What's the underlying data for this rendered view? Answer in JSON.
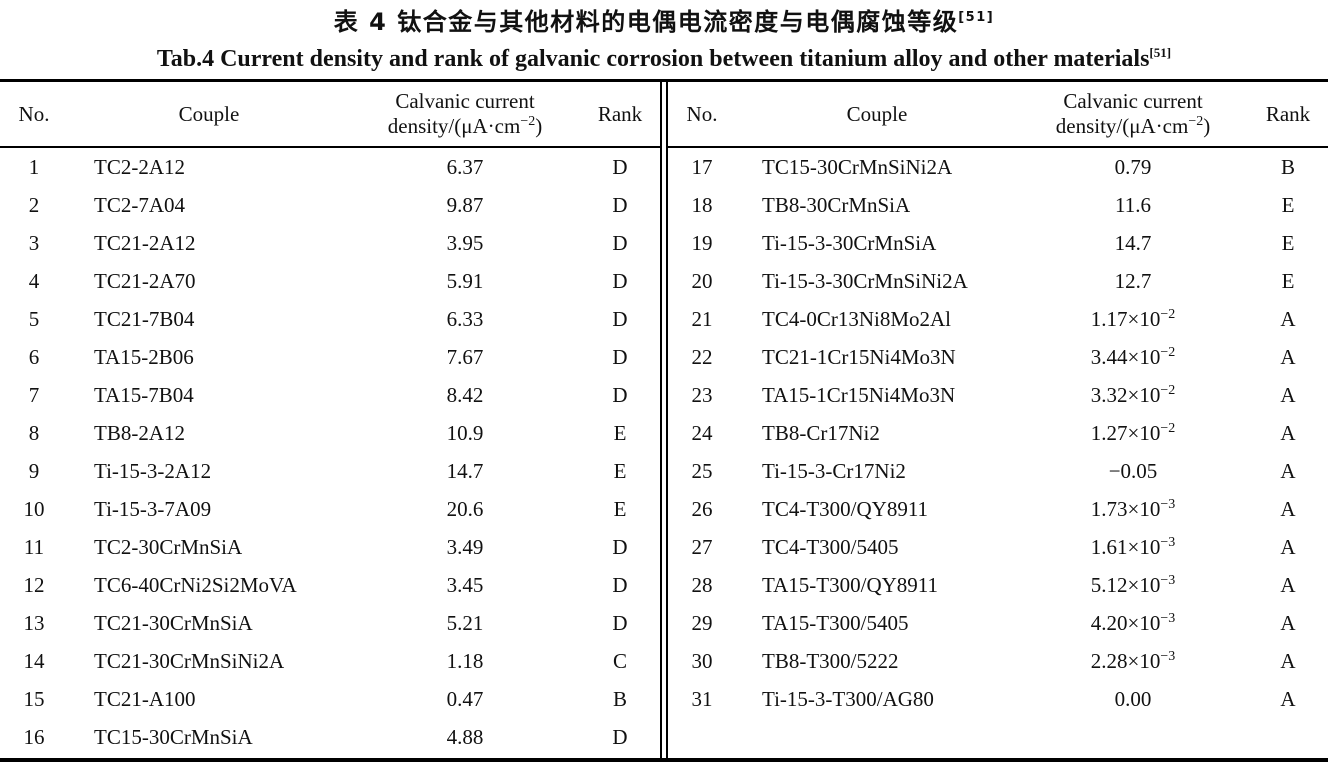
{
  "titles": {
    "zh": "表 4  钛合金与其他材料的电偶电流密度与电偶腐蚀等级",
    "zh_ref": "[51]",
    "en": "Tab.4 Current density and rank of galvanic corrosion between titanium alloy and other materials",
    "en_ref": "[51]"
  },
  "table": {
    "headers": {
      "no": "No.",
      "couple": "Couple",
      "density_line1": "Calvanic current",
      "density_unit_pre": "density/(μA·cm",
      "density_unit_sup": "−2",
      "density_unit_post": ")",
      "rank": "Rank"
    },
    "left_rows": [
      {
        "no": "1",
        "couple": "TC2-2A12",
        "density": "6.37",
        "density_exp": "",
        "rank": "D"
      },
      {
        "no": "2",
        "couple": "TC2-7A04",
        "density": "9.87",
        "density_exp": "",
        "rank": "D"
      },
      {
        "no": "3",
        "couple": "TC21-2A12",
        "density": "3.95",
        "density_exp": "",
        "rank": "D"
      },
      {
        "no": "4",
        "couple": "TC21-2A70",
        "density": "5.91",
        "density_exp": "",
        "rank": "D"
      },
      {
        "no": "5",
        "couple": "TC21-7B04",
        "density": "6.33",
        "density_exp": "",
        "rank": "D"
      },
      {
        "no": "6",
        "couple": "TA15-2B06",
        "density": "7.67",
        "density_exp": "",
        "rank": "D"
      },
      {
        "no": "7",
        "couple": "TA15-7B04",
        "density": "8.42",
        "density_exp": "",
        "rank": "D"
      },
      {
        "no": "8",
        "couple": "TB8-2A12",
        "density": "10.9",
        "density_exp": "",
        "rank": "E"
      },
      {
        "no": "9",
        "couple": "Ti-15-3-2A12",
        "density": "14.7",
        "density_exp": "",
        "rank": "E"
      },
      {
        "no": "10",
        "couple": "Ti-15-3-7A09",
        "density": "20.6",
        "density_exp": "",
        "rank": "E"
      },
      {
        "no": "11",
        "couple": "TC2-30CrMnSiA",
        "density": "3.49",
        "density_exp": "",
        "rank": "D"
      },
      {
        "no": "12",
        "couple": "TC6-40CrNi2Si2MoVA",
        "density": "3.45",
        "density_exp": "",
        "rank": "D"
      },
      {
        "no": "13",
        "couple": "TC21-30CrMnSiA",
        "density": "5.21",
        "density_exp": "",
        "rank": "D"
      },
      {
        "no": "14",
        "couple": "TC21-30CrMnSiNi2A",
        "density": "1.18",
        "density_exp": "",
        "rank": "C"
      },
      {
        "no": "15",
        "couple": "TC21-A100",
        "density": "0.47",
        "density_exp": "",
        "rank": "B"
      },
      {
        "no": "16",
        "couple": "TC15-30CrMnSiA",
        "density": "4.88",
        "density_exp": "",
        "rank": "D"
      }
    ],
    "right_rows": [
      {
        "no": "17",
        "couple": "TC15-30CrMnSiNi2A",
        "density": "0.79",
        "density_exp": "",
        "rank": "B"
      },
      {
        "no": "18",
        "couple": "TB8-30CrMnSiA",
        "density": "11.6",
        "density_exp": "",
        "rank": "E"
      },
      {
        "no": "19",
        "couple": "Ti-15-3-30CrMnSiA",
        "density": "14.7",
        "density_exp": "",
        "rank": "E"
      },
      {
        "no": "20",
        "couple": "Ti-15-3-30CrMnSiNi2A",
        "density": "12.7",
        "density_exp": "",
        "rank": "E"
      },
      {
        "no": "21",
        "couple": "TC4-0Cr13Ni8Mo2Al",
        "density": "1.17×10",
        "density_exp": "−2",
        "rank": "A"
      },
      {
        "no": "22",
        "couple": "TC21-1Cr15Ni4Mo3N",
        "density": "3.44×10",
        "density_exp": "−2",
        "rank": "A"
      },
      {
        "no": "23",
        "couple": "TA15-1Cr15Ni4Mo3N",
        "density": "3.32×10",
        "density_exp": "−2",
        "rank": "A"
      },
      {
        "no": "24",
        "couple": "TB8-Cr17Ni2",
        "density": "1.27×10",
        "density_exp": "−2",
        "rank": "A"
      },
      {
        "no": "25",
        "couple": "Ti-15-3-Cr17Ni2",
        "density": "−0.05",
        "density_exp": "",
        "rank": "A"
      },
      {
        "no": "26",
        "couple": "TC4-T300/QY8911",
        "density": "1.73×10",
        "density_exp": "−3",
        "rank": "A"
      },
      {
        "no": "27",
        "couple": "TC4-T300/5405",
        "density": "1.61×10",
        "density_exp": "−3",
        "rank": "A"
      },
      {
        "no": "28",
        "couple": "TA15-T300/QY8911",
        "density": "5.12×10",
        "density_exp": "−3",
        "rank": "A"
      },
      {
        "no": "29",
        "couple": "TA15-T300/5405",
        "density": "4.20×10",
        "density_exp": "−3",
        "rank": "A"
      },
      {
        "no": "30",
        "couple": "TB8-T300/5222",
        "density": "2.28×10",
        "density_exp": "−3",
        "rank": "A"
      },
      {
        "no": "31",
        "couple": "Ti-15-3-T300/AG80",
        "density": "0.00",
        "density_exp": "",
        "rank": "A"
      }
    ]
  }
}
